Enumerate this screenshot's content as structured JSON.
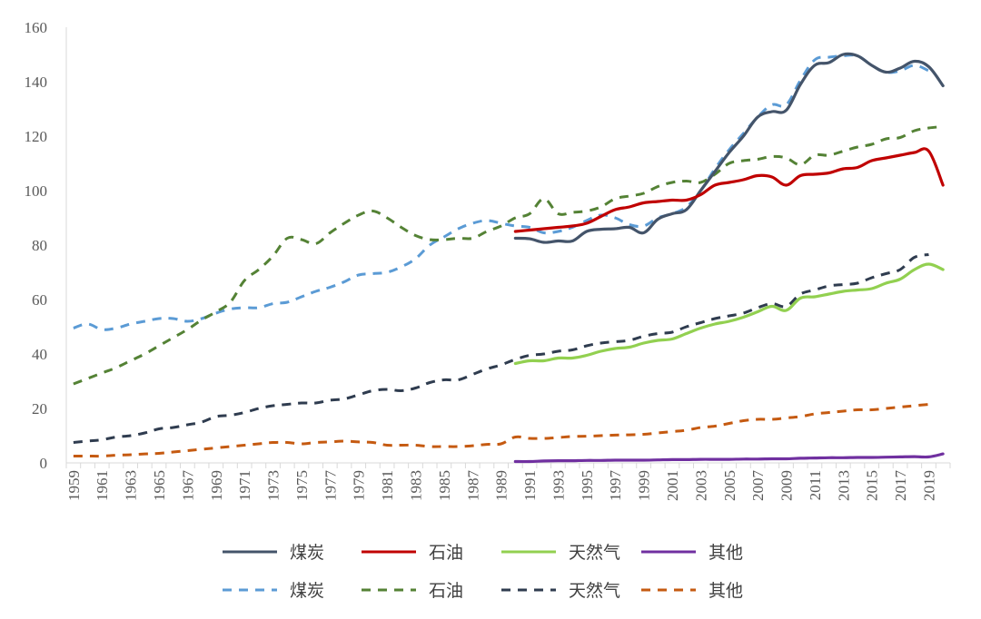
{
  "chart_data": {
    "type": "line",
    "title": "",
    "xlabel": "",
    "ylabel": "",
    "ylim": [
      0,
      160
    ],
    "y_ticks": [
      0,
      20,
      40,
      60,
      80,
      100,
      120,
      140,
      160
    ],
    "x_range": [
      1959,
      2020
    ],
    "x_tick_labels": [
      "1959",
      "1961",
      "1963",
      "1965",
      "1967",
      "1969",
      "1971",
      "1973",
      "1975",
      "1977",
      "1979",
      "1981",
      "1983",
      "1985",
      "1987",
      "1989",
      "1991",
      "1993",
      "1995",
      "1997",
      "1999",
      "2001",
      "2003",
      "2005",
      "2007",
      "2009",
      "2011",
      "2013",
      "2015",
      "2017",
      "2019"
    ],
    "grid": false,
    "legend_position": "bottom",
    "series": [
      {
        "name": "煤炭",
        "style": "solid",
        "color": "#44546A",
        "start_year": 1990,
        "values": [
          82.5,
          82.3,
          81.0,
          81.5,
          81.5,
          85.0,
          85.8,
          86.0,
          86.5,
          84.5,
          89.5,
          91.5,
          93.0,
          100.0,
          107.0,
          114.0,
          120.0,
          127.0,
          129.0,
          129.5,
          139.0,
          146.0,
          147.0,
          150.0,
          149.5,
          146.0,
          143.5,
          145.0,
          147.5,
          145.5,
          138.5
        ]
      },
      {
        "name": "石油",
        "style": "solid",
        "color": "#C00000",
        "start_year": 1990,
        "values": [
          85.0,
          85.5,
          86.0,
          86.5,
          87.0,
          88.0,
          90.5,
          93.0,
          94.0,
          95.5,
          96.0,
          96.5,
          96.5,
          98.5,
          102.0,
          103.0,
          104.0,
          105.5,
          105.0,
          102.0,
          105.5,
          106.0,
          106.5,
          108.0,
          108.5,
          111.0,
          112.0,
          113.0,
          114.0,
          114.5,
          102.0
        ]
      },
      {
        "name": "天然气",
        "style": "solid",
        "color": "#92D050",
        "start_year": 1990,
        "values": [
          36.5,
          37.5,
          37.5,
          38.5,
          38.5,
          39.5,
          41.0,
          42.0,
          42.5,
          44.0,
          45.0,
          45.5,
          47.5,
          49.5,
          51.0,
          52.0,
          53.5,
          55.5,
          57.5,
          56.0,
          60.5,
          61.0,
          62.0,
          63.0,
          63.5,
          64.0,
          66.0,
          67.5,
          71.0,
          73.0,
          71.0
        ]
      },
      {
        "name": "其他",
        "style": "solid",
        "color": "#7030A0",
        "start_year": 1990,
        "values": [
          0.5,
          0.5,
          0.7,
          0.8,
          0.8,
          0.9,
          0.9,
          1.0,
          1.0,
          1.0,
          1.1,
          1.2,
          1.2,
          1.3,
          1.3,
          1.3,
          1.4,
          1.4,
          1.5,
          1.5,
          1.7,
          1.8,
          1.9,
          1.9,
          2.0,
          2.0,
          2.1,
          2.2,
          2.3,
          2.2,
          3.3
        ]
      },
      {
        "name": "煤炭",
        "style": "dashed",
        "color": "#5B9BD5",
        "start_year": 1959,
        "values": [
          49.5,
          51.0,
          49.0,
          49.5,
          51.0,
          52.0,
          53.0,
          53.0,
          52.0,
          53.0,
          55.0,
          56.5,
          57.0,
          57.0,
          58.5,
          59.0,
          61.0,
          63.0,
          64.5,
          66.5,
          69.0,
          69.5,
          70.0,
          72.0,
          75.0,
          80.0,
          83.0,
          86.0,
          88.0,
          89.0,
          88.0,
          87.0,
          86.5,
          84.5,
          85.0,
          86.5,
          89.0,
          91.0,
          90.0,
          87.5,
          87.0,
          90.0,
          91.5,
          94.0,
          100.0,
          108.0,
          115.0,
          121.0,
          127.0,
          131.5,
          131.5,
          140.5,
          148.0,
          149.0,
          149.5,
          149.5,
          146.0,
          143.5,
          144.0,
          146.0,
          144.0
        ]
      },
      {
        "name": "石油",
        "style": "dashed",
        "color": "#548235",
        "start_year": 1959,
        "values": [
          29.0,
          31.0,
          33.0,
          35.0,
          37.5,
          40.0,
          43.0,
          46.0,
          49.0,
          52.5,
          55.5,
          59.0,
          67.0,
          71.0,
          76.0,
          82.5,
          82.0,
          80.5,
          84.5,
          88.0,
          91.0,
          92.5,
          90.0,
          86.5,
          83.5,
          82.0,
          82.0,
          82.5,
          82.5,
          85.0,
          87.0,
          90.0,
          91.5,
          97.0,
          91.5,
          92.0,
          92.5,
          94.0,
          97.0,
          98.0,
          99.0,
          101.5,
          103.0,
          103.5,
          103.0,
          106.0,
          110.0,
          111.0,
          111.5,
          112.5,
          112.0,
          109.5,
          113.0,
          113.0,
          114.5,
          116.0,
          117.0,
          119.0,
          119.5,
          122.0,
          123.0,
          123.5
        ]
      },
      {
        "name": "天然气",
        "style": "dashed",
        "color": "#2F3C4F",
        "start_year": 1959,
        "values": [
          7.5,
          8.0,
          8.5,
          9.5,
          10.0,
          11.0,
          12.5,
          13.0,
          14.0,
          15.0,
          17.0,
          17.5,
          18.5,
          20.0,
          21.0,
          21.5,
          22.0,
          22.0,
          23.0,
          23.5,
          25.0,
          26.5,
          27.0,
          26.5,
          27.5,
          29.5,
          30.5,
          30.5,
          32.5,
          34.5,
          36.0,
          38.0,
          39.5,
          40.0,
          41.0,
          41.5,
          43.0,
          44.0,
          44.5,
          45.0,
          46.5,
          47.5,
          48.0,
          50.0,
          51.5,
          53.0,
          54.0,
          55.0,
          57.0,
          58.5,
          57.5,
          62.0,
          63.5,
          65.0,
          65.5,
          66.0,
          68.0,
          69.5,
          71.0,
          75.5,
          76.5
        ]
      },
      {
        "name": "其他",
        "style": "dashed",
        "color": "#C55A11",
        "start_year": 1959,
        "values": [
          2.5,
          2.5,
          2.5,
          2.8,
          3.0,
          3.3,
          3.5,
          4.0,
          4.5,
          5.0,
          5.5,
          6.0,
          6.5,
          7.0,
          7.5,
          7.5,
          7.0,
          7.5,
          7.7,
          8.0,
          7.7,
          7.5,
          6.5,
          6.5,
          6.5,
          6.0,
          6.0,
          6.0,
          6.3,
          6.8,
          7.0,
          9.5,
          9.0,
          9.0,
          9.3,
          9.7,
          9.8,
          10.0,
          10.2,
          10.3,
          10.5,
          11.0,
          11.5,
          12.0,
          13.0,
          13.5,
          14.5,
          15.5,
          16.0,
          16.0,
          16.5,
          17.0,
          18.0,
          18.5,
          19.0,
          19.5,
          19.5,
          20.0,
          20.5,
          21.0,
          21.5
        ]
      }
    ]
  }
}
